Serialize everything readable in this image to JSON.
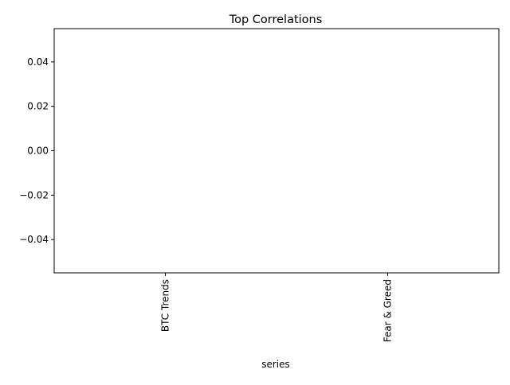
{
  "chart_data": {
    "type": "bar",
    "title": "Top Correlations",
    "xlabel": "series",
    "ylabel": "",
    "categories": [
      "BTC Trends",
      "Fear & Greed"
    ],
    "values": [
      0,
      0
    ],
    "ylim": [
      -0.055,
      0.055
    ],
    "yticks": [
      0.04,
      0.02,
      0.0,
      -0.02,
      -0.04
    ],
    "ytick_labels": [
      "0.04",
      "0.02",
      "0.00",
      "−0.02",
      "−0.04"
    ],
    "grid": false,
    "legend": "none",
    "bar_color": "#1f77b4"
  }
}
